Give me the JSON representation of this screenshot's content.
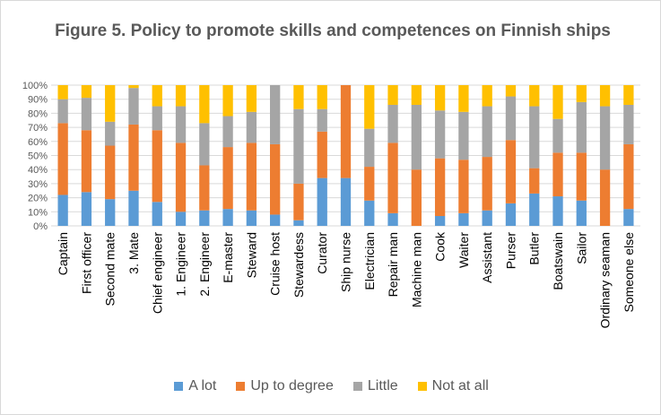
{
  "chart_data": {
    "type": "bar",
    "stacked": true,
    "orientation": "vertical",
    "title": "Figure 5. Policy to promote skills and competences on Finnish ships",
    "xlabel": "",
    "ylabel": "",
    "ylim": [
      0,
      100
    ],
    "yticks": [
      "0%",
      "10%",
      "20%",
      "30%",
      "40%",
      "50%",
      "60%",
      "70%",
      "80%",
      "90%",
      "100%"
    ],
    "grid": true,
    "legend_position": "bottom",
    "categories": [
      "Captain",
      "First officer",
      "Second mate",
      "3. Mate",
      "Chief engineer",
      "1. Engineer",
      "2. Engineer",
      "E-master",
      "Steward",
      "Cruise host",
      "Stewardess",
      "Curator",
      "Ship nurse",
      "Electrician",
      "Repair man",
      "Machine man",
      "Cook",
      "Waiter",
      "Assistant",
      "Purser",
      "Butler",
      "Boatswain",
      "Sailor",
      "Ordinary seaman",
      "Someone else"
    ],
    "series": [
      {
        "name": "A lot",
        "color": "#5b9bd5",
        "values": [
          22,
          24,
          19,
          25,
          17,
          10,
          11,
          12,
          11,
          8,
          4,
          34,
          34,
          18,
          9,
          0,
          7,
          9,
          11,
          16,
          23,
          21,
          18,
          0,
          12
        ]
      },
      {
        "name": "Up to degree",
        "color": "#ed7d31",
        "values": [
          51,
          44,
          38,
          47,
          51,
          49,
          32,
          44,
          48,
          50,
          26,
          33,
          66,
          24,
          50,
          40,
          41,
          38,
          38,
          45,
          18,
          31,
          34,
          40,
          46
        ]
      },
      {
        "name": "Little",
        "color": "#a5a5a5",
        "values": [
          17,
          23,
          17,
          26,
          17,
          26,
          30,
          22,
          22,
          42,
          53,
          16,
          0,
          27,
          27,
          46,
          34,
          34,
          36,
          31,
          44,
          24,
          36,
          45,
          28
        ]
      },
      {
        "name": "Not at all",
        "color": "#ffc000",
        "values": [
          10,
          9,
          26,
          2,
          15,
          15,
          27,
          22,
          19,
          0,
          17,
          17,
          0,
          31,
          14,
          14,
          18,
          19,
          15,
          8,
          15,
          24,
          12,
          15,
          14
        ]
      }
    ]
  }
}
